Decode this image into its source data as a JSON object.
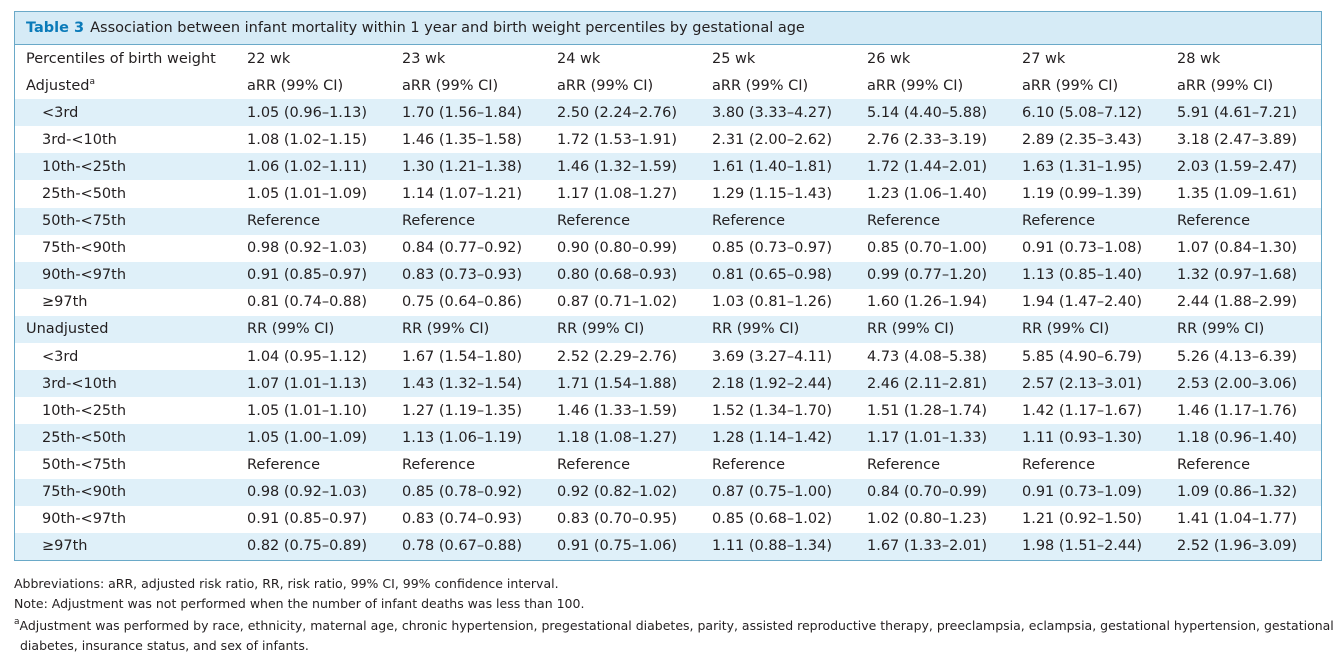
{
  "caption": {
    "label": "Table 3",
    "text": "Association between infant mortality within 1 year and birth weight percentiles by gestational age"
  },
  "header": {
    "first": "Percentiles of birth weight",
    "weeks": [
      "22 wk",
      "23 wk",
      "24 wk",
      "25 wk",
      "26 wk",
      "27 wk",
      "28 wk"
    ]
  },
  "sections": [
    {
      "title": "Adjusted",
      "title_sup": "a",
      "metric": "aRR (99% CI)",
      "rows": [
        {
          "label": "<3rd",
          "values": [
            "1.05 (0.96–1.13)",
            "1.70 (1.56–1.84)",
            "2.50 (2.24–2.76)",
            "3.80 (3.33–4.27)",
            "5.14 (4.40–5.88)",
            "6.10 (5.08–7.12)",
            "5.91 (4.61–7.21)"
          ]
        },
        {
          "label": "3rd-<10th",
          "values": [
            "1.08 (1.02–1.15)",
            "1.46 (1.35–1.58)",
            "1.72 (1.53–1.91)",
            "2.31 (2.00–2.62)",
            "2.76 (2.33–3.19)",
            "2.89 (2.35–3.43)",
            "3.18 (2.47–3.89)"
          ]
        },
        {
          "label": "10th-<25th",
          "values": [
            "1.06 (1.02–1.11)",
            "1.30 (1.21–1.38)",
            "1.46 (1.32–1.59)",
            "1.61 (1.40–1.81)",
            "1.72 (1.44–2.01)",
            "1.63 (1.31–1.95)",
            "2.03 (1.59–2.47)"
          ]
        },
        {
          "label": "25th-<50th",
          "values": [
            "1.05 (1.01–1.09)",
            "1.14 (1.07–1.21)",
            "1.17 (1.08–1.27)",
            "1.29 (1.15–1.43)",
            "1.23 (1.06–1.40)",
            "1.19 (0.99–1.39)",
            "1.35 (1.09–1.61)"
          ]
        },
        {
          "label": "50th-<75th",
          "values": [
            "Reference",
            "Reference",
            "Reference",
            "Reference",
            "Reference",
            "Reference",
            "Reference"
          ]
        },
        {
          "label": "75th-<90th",
          "values": [
            "0.98 (0.92–1.03)",
            "0.84 (0.77–0.92)",
            "0.90 (0.80–0.99)",
            "0.85 (0.73–0.97)",
            "0.85 (0.70–1.00)",
            "0.91 (0.73–1.08)",
            "1.07 (0.84–1.30)"
          ]
        },
        {
          "label": "90th-<97th",
          "values": [
            "0.91 (0.85–0.97)",
            "0.83 (0.73–0.93)",
            "0.80 (0.68–0.93)",
            "0.81 (0.65–0.98)",
            "0.99 (0.77–1.20)",
            "1.13 (0.85–1.40)",
            "1.32 (0.97–1.68)"
          ]
        },
        {
          "label": "≥97th",
          "values": [
            "0.81 (0.74–0.88)",
            "0.75 (0.64–0.86)",
            "0.87 (0.71–1.02)",
            "1.03 (0.81–1.26)",
            "1.60 (1.26–1.94)",
            "1.94 (1.47–2.40)",
            "2.44 (1.88–2.99)"
          ]
        }
      ]
    },
    {
      "title": "Unadjusted",
      "title_sup": "",
      "metric": "RR (99% CI)",
      "rows": [
        {
          "label": "<3rd",
          "values": [
            "1.04 (0.95–1.12)",
            "1.67 (1.54–1.80)",
            "2.52 (2.29–2.76)",
            "3.69 (3.27–4.11)",
            "4.73 (4.08–5.38)",
            "5.85 (4.90–6.79)",
            "5.26 (4.13–6.39)"
          ]
        },
        {
          "label": "3rd-<10th",
          "values": [
            "1.07 (1.01–1.13)",
            "1.43 (1.32–1.54)",
            "1.71 (1.54–1.88)",
            "2.18 (1.92–2.44)",
            "2.46 (2.11–2.81)",
            "2.57 (2.13–3.01)",
            "2.53 (2.00–3.06)"
          ]
        },
        {
          "label": "10th-<25th",
          "values": [
            "1.05 (1.01–1.10)",
            "1.27 (1.19–1.35)",
            "1.46 (1.33–1.59)",
            "1.52 (1.34–1.70)",
            "1.51 (1.28–1.74)",
            "1.42 (1.17–1.67)",
            "1.46 (1.17–1.76)"
          ]
        },
        {
          "label": "25th-<50th",
          "values": [
            "1.05 (1.00–1.09)",
            "1.13 (1.06–1.19)",
            "1.18 (1.08–1.27)",
            "1.28 (1.14–1.42)",
            "1.17 (1.01–1.33)",
            "1.11 (0.93–1.30)",
            "1.18 (0.96–1.40)"
          ]
        },
        {
          "label": "50th-<75th",
          "values": [
            "Reference",
            "Reference",
            "Reference",
            "Reference",
            "Reference",
            "Reference",
            "Reference"
          ]
        },
        {
          "label": "75th-<90th",
          "values": [
            "0.98 (0.92–1.03)",
            "0.85 (0.78–0.92)",
            "0.92 (0.82–1.02)",
            "0.87 (0.75–1.00)",
            "0.84 (0.70–0.99)",
            "0.91 (0.73–1.09)",
            "1.09 (0.86–1.32)"
          ]
        },
        {
          "label": "90th-<97th",
          "values": [
            "0.91 (0.85–0.97)",
            "0.83 (0.74–0.93)",
            "0.83 (0.70–0.95)",
            "0.85 (0.68–1.02)",
            "1.02 (0.80–1.23)",
            "1.21 (0.92–1.50)",
            "1.41 (1.04–1.77)"
          ]
        },
        {
          "label": "≥97th",
          "values": [
            "0.82 (0.75–0.89)",
            "0.78 (0.67–0.88)",
            "0.91 (0.75–1.06)",
            "1.11 (0.88–1.34)",
            "1.67 (1.33–2.01)",
            "1.98 (1.51–2.44)",
            "2.52 (1.96–3.09)"
          ]
        }
      ]
    }
  ],
  "footnotes": {
    "abbreviations": "Abbreviations: aRR, adjusted risk ratio, RR, risk ratio, 99% CI, 99% confidence interval.",
    "note": "Note: Adjustment was not performed when the number of infant deaths was less than 100.",
    "a_marker": "a",
    "a_line1": "Adjustment was performed by race, ethnicity, maternal age, chronic hypertension, pregestational diabetes, parity, assisted reproductive therapy, preeclampsia, eclampsia, gestational hypertension, gestational",
    "a_line2": "diabetes, insurance status, and sex of infants."
  },
  "colors": {
    "caption_bg": "#d6ebf6",
    "caption_label": "#0b7bb9",
    "row_shade": "#dff0f9",
    "border": "#6aa9c8"
  }
}
